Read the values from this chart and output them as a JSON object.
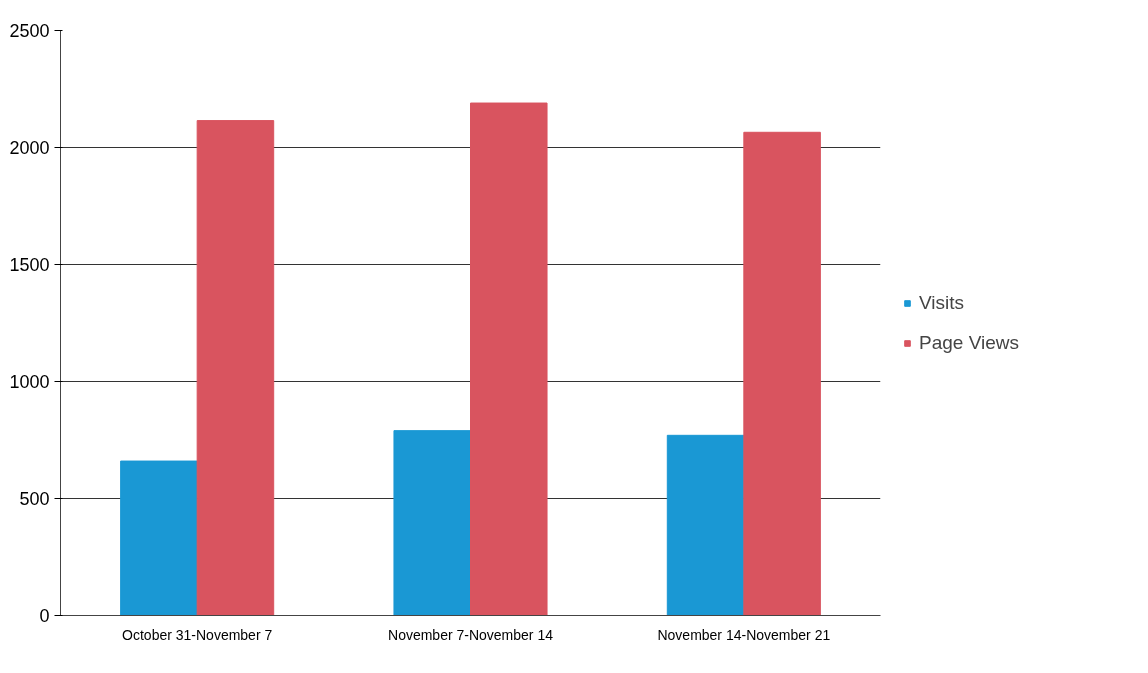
{
  "chart_data": {
    "type": "bar",
    "categories": [
      "October 31-November 7",
      "November 7-November 14",
      "November 14-November 21"
    ],
    "series": [
      {
        "name": "Visits",
        "color": "#1a98d4",
        "values": [
          660,
          790,
          770
        ]
      },
      {
        "name": "Page Views",
        "color": "#d9545f",
        "values": [
          2115,
          2190,
          2065
        ]
      }
    ],
    "ylim": [
      0,
      2500
    ],
    "yticks": [
      0,
      500,
      1000,
      1500,
      2000,
      2500
    ],
    "grid": "y",
    "legend": "right"
  }
}
